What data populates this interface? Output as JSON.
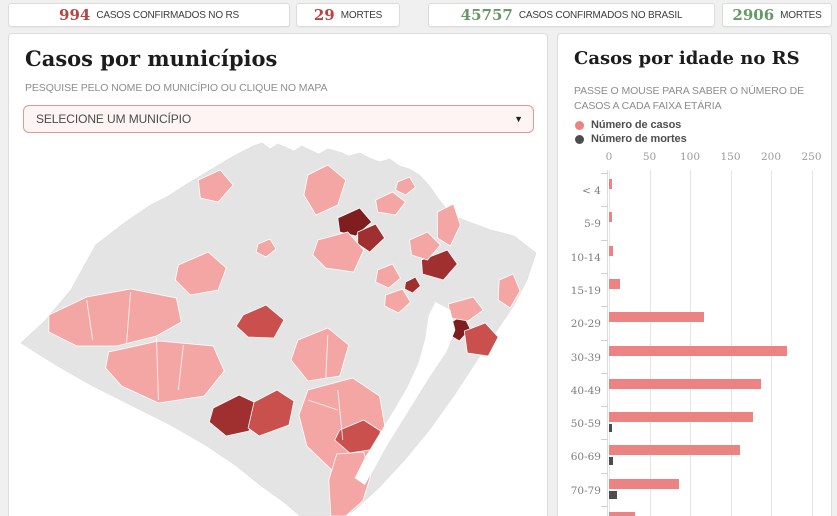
{
  "stats": [
    {
      "value": "994",
      "label": "CASOS CONFIRMADOS NO RS",
      "color": "#bb4341"
    },
    {
      "value": "29",
      "label": "MORTES",
      "color": "#bb4341"
    },
    {
      "value": "45757",
      "label": "CASOS CONFIRMADOS NO BRASIL",
      "color": "#669966"
    },
    {
      "value": "2906",
      "label": "MORTES",
      "color": "#669966"
    }
  ],
  "map_panel": {
    "title": "Casos por municípios",
    "subtitle": "PESQUISE PELO NOME DO MUNICÍPIO OU CLIQUE NO MAPA",
    "select_value": "SELECIONE UM MUNICÍPIO",
    "select_arrow": "▼",
    "map": {
      "base_color": "#e4e4e4",
      "water_color": "#ffffff",
      "border_color": "#ffffff",
      "palette": [
        "#f3a6a4",
        "#c9504c",
        "#a03030",
        "#7e1e1e"
      ],
      "outline": [
        [
          237,
          10
        ],
        [
          245,
          6
        ],
        [
          254,
          3
        ],
        [
          262,
          9
        ],
        [
          270,
          4
        ],
        [
          277,
          7
        ],
        [
          286,
          11
        ],
        [
          294,
          6
        ],
        [
          302,
          10
        ],
        [
          311,
          14
        ],
        [
          320,
          9
        ],
        [
          332,
          12
        ],
        [
          341,
          16
        ],
        [
          352,
          13
        ],
        [
          362,
          18
        ],
        [
          372,
          22
        ],
        [
          382,
          19
        ],
        [
          392,
          26
        ],
        [
          402,
          29
        ],
        [
          412,
          35
        ],
        [
          422,
          46
        ],
        [
          432,
          60
        ],
        [
          444,
          75
        ],
        [
          462,
          82
        ],
        [
          484,
          90
        ],
        [
          507,
          96
        ],
        [
          529,
          113
        ],
        [
          520,
          140
        ],
        [
          507,
          165
        ],
        [
          490,
          190
        ],
        [
          470,
          220
        ],
        [
          447,
          255
        ],
        [
          422,
          290
        ],
        [
          397,
          320
        ],
        [
          372,
          347
        ],
        [
          347,
          370
        ],
        [
          337,
          376
        ],
        [
          292,
          376
        ],
        [
          277,
          363
        ],
        [
          252,
          345
        ],
        [
          227,
          325
        ],
        [
          197,
          305
        ],
        [
          162,
          285
        ],
        [
          122,
          265
        ],
        [
          82,
          245
        ],
        [
          47,
          225
        ],
        [
          12,
          203
        ],
        [
          37,
          180
        ],
        [
          62,
          150
        ],
        [
          87,
          105
        ],
        [
          117,
          82
        ],
        [
          142,
          65
        ],
        [
          160,
          56
        ],
        [
          177,
          45
        ],
        [
          192,
          36
        ],
        [
          207,
          27
        ],
        [
          222,
          18
        ]
      ],
      "lagoon": [
        [
          428,
          162
        ],
        [
          443,
          170
        ],
        [
          448,
          190
        ],
        [
          439,
          212
        ],
        [
          424,
          234
        ],
        [
          409,
          258
        ],
        [
          394,
          282
        ],
        [
          379,
          306
        ],
        [
          367,
          328
        ],
        [
          357,
          345
        ],
        [
          347,
          338
        ],
        [
          357,
          318
        ],
        [
          371,
          295
        ],
        [
          386,
          271
        ],
        [
          400,
          247
        ],
        [
          411,
          223
        ],
        [
          418,
          198
        ],
        [
          421,
          176
        ]
      ],
      "regions": [
        {
          "level": 0,
          "points": [
            [
              190,
              40
            ],
            [
              212,
              30
            ],
            [
              225,
              45
            ],
            [
              210,
              62
            ],
            [
              192,
              58
            ]
          ]
        },
        {
          "level": 0,
          "points": [
            [
              300,
              35
            ],
            [
              320,
              25
            ],
            [
              338,
              40
            ],
            [
              330,
              65
            ],
            [
              308,
              75
            ],
            [
              296,
              55
            ]
          ]
        },
        {
          "level": 3,
          "points": [
            [
              330,
              78
            ],
            [
              352,
              68
            ],
            [
              364,
              82
            ],
            [
              348,
              96
            ],
            [
              332,
              92
            ]
          ]
        },
        {
          "level": 2,
          "points": [
            [
              350,
              92
            ],
            [
              368,
              84
            ],
            [
              377,
              98
            ],
            [
              362,
              112
            ],
            [
              350,
              104
            ]
          ]
        },
        {
          "level": 0,
          "points": [
            [
              310,
              100
            ],
            [
              340,
              92
            ],
            [
              356,
              110
            ],
            [
              346,
              132
            ],
            [
              318,
              128
            ],
            [
              305,
              115
            ]
          ]
        },
        {
          "level": 0,
          "points": [
            [
              368,
              60
            ],
            [
              385,
              52
            ],
            [
              398,
              62
            ],
            [
              388,
              75
            ],
            [
              370,
              72
            ]
          ]
        },
        {
          "level": 0,
          "points": [
            [
              430,
              72
            ],
            [
              446,
              64
            ],
            [
              453,
              85
            ],
            [
              443,
              106
            ],
            [
              430,
              98
            ]
          ]
        },
        {
          "level": 2,
          "points": [
            [
              414,
              120
            ],
            [
              440,
              110
            ],
            [
              450,
              124
            ],
            [
              436,
              140
            ],
            [
              415,
              134
            ]
          ]
        },
        {
          "level": 0,
          "points": [
            [
              170,
              125
            ],
            [
              200,
              112
            ],
            [
              218,
              128
            ],
            [
              210,
              150
            ],
            [
              182,
              155
            ],
            [
              167,
              140
            ]
          ]
        },
        {
          "level": 1,
          "points": [
            [
              235,
              175
            ],
            [
              258,
              165
            ],
            [
              276,
              180
            ],
            [
              266,
              198
            ],
            [
              240,
              197
            ],
            [
              228,
              186
            ]
          ]
        },
        {
          "level": 0,
          "points": [
            [
              40,
              175
            ],
            [
              78,
              157
            ],
            [
              122,
              149
            ],
            [
              168,
              158
            ],
            [
              173,
              182
            ],
            [
              148,
              196
            ],
            [
              108,
              206
            ],
            [
              68,
              206
            ],
            [
              40,
              192
            ]
          ]
        },
        {
          "level": 0,
          "points": [
            [
              100,
              212
            ],
            [
              150,
              201
            ],
            [
              205,
              206
            ],
            [
              216,
              231
            ],
            [
              196,
              256
            ],
            [
              150,
              263
            ],
            [
              113,
              246
            ],
            [
              97,
              228
            ]
          ]
        },
        {
          "level": 0,
          "points": [
            [
              290,
              200
            ],
            [
              320,
              188
            ],
            [
              341,
              205
            ],
            [
              332,
              236
            ],
            [
              300,
              241
            ],
            [
              283,
              220
            ]
          ]
        },
        {
          "level": 0,
          "points": [
            [
              300,
              250
            ],
            [
              345,
              238
            ],
            [
              372,
              256
            ],
            [
              378,
              291
            ],
            [
              355,
              321
            ],
            [
              325,
              331
            ],
            [
              299,
              306
            ],
            [
              291,
              275
            ]
          ]
        },
        {
          "level": 2,
          "points": [
            [
              205,
              268
            ],
            [
              231,
              255
            ],
            [
              246,
              262
            ],
            [
              241,
              291
            ],
            [
              218,
              296
            ],
            [
              201,
              282
            ]
          ]
        },
        {
          "level": 1,
          "points": [
            [
              246,
              262
            ],
            [
              269,
              250
            ],
            [
              286,
              261
            ],
            [
              281,
              285
            ],
            [
              251,
              296
            ],
            [
              240,
              288
            ]
          ]
        },
        {
          "level": 1,
          "points": [
            [
              332,
              290
            ],
            [
              356,
              280
            ],
            [
              373,
              291
            ],
            [
              368,
              309
            ],
            [
              342,
              313
            ],
            [
              327,
              300
            ]
          ]
        },
        {
          "level": 0,
          "points": [
            [
              329,
              314
            ],
            [
              356,
              312
            ],
            [
              363,
              336
            ],
            [
              355,
              361
            ],
            [
              338,
              376
            ],
            [
              323,
              376
            ],
            [
              321,
              340
            ]
          ]
        },
        {
          "level": 3,
          "points": [
            [
              444,
              182
            ],
            [
              456,
              175
            ],
            [
              463,
              189
            ],
            [
              452,
              201
            ],
            [
              442,
              195
            ]
          ]
        },
        {
          "level": 1,
          "points": [
            [
              457,
              191
            ],
            [
              478,
              183
            ],
            [
              491,
              197
            ],
            [
              481,
              216
            ],
            [
              460,
              213
            ]
          ]
        },
        {
          "level": 0,
          "points": [
            [
              441,
              164
            ],
            [
              466,
              157
            ],
            [
              476,
              170
            ],
            [
              461,
              181
            ],
            [
              443,
              178
            ]
          ]
        },
        {
          "level": 0,
          "points": [
            [
              492,
              140
            ],
            [
              506,
              134
            ],
            [
              513,
              151
            ],
            [
              503,
              168
            ],
            [
              491,
              160
            ]
          ]
        },
        {
          "level": 0,
          "points": [
            [
              370,
              130
            ],
            [
              385,
              124
            ],
            [
              393,
              138
            ],
            [
              381,
              148
            ],
            [
              368,
              142
            ]
          ]
        },
        {
          "level": 0,
          "points": [
            [
              378,
              155
            ],
            [
              395,
              149
            ],
            [
              403,
              162
            ],
            [
              391,
              173
            ],
            [
              377,
              166
            ]
          ]
        },
        {
          "level": 0,
          "points": [
            [
              402,
              100
            ],
            [
              420,
              92
            ],
            [
              433,
              105
            ],
            [
              420,
              120
            ],
            [
              404,
              115
            ]
          ]
        },
        {
          "level": 2,
          "points": [
            [
              398,
              142
            ],
            [
              408,
              137
            ],
            [
              413,
              146
            ],
            [
              405,
              153
            ],
            [
              397,
              149
            ]
          ]
        },
        {
          "level": 0,
          "points": [
            [
              390,
              42
            ],
            [
              402,
              37
            ],
            [
              408,
              47
            ],
            [
              398,
              55
            ],
            [
              388,
              50
            ]
          ]
        },
        {
          "level": 0,
          "points": [
            [
              250,
              104
            ],
            [
              262,
              99
            ],
            [
              268,
              109
            ],
            [
              258,
              117
            ],
            [
              248,
              112
            ]
          ]
        }
      ],
      "inner_borders": [
        [
          [
            78,
            160
          ],
          [
            84,
            200
          ]
        ],
        [
          [
            122,
            152
          ],
          [
            118,
            203
          ]
        ],
        [
          [
            148,
            198
          ],
          [
            150,
            260
          ]
        ],
        [
          [
            175,
            205
          ],
          [
            170,
            250
          ]
        ],
        [
          [
            320,
            195
          ],
          [
            318,
            238
          ]
        ],
        [
          [
            330,
            250
          ],
          [
            335,
            300
          ]
        ],
        [
          [
            300,
            260
          ],
          [
            330,
            270
          ]
        ]
      ]
    }
  },
  "chart_panel": {
    "title": "Casos por idade no RS",
    "subtitle": "PASSE O MOUSE PARA SABER O NÚMERO DE CASOS A CADA FAIXA ETÁRIA",
    "legend": [
      {
        "label": "Número de casos",
        "color": "#ec8282"
      },
      {
        "label": "Número de mortes",
        "color": "#4d4d4d"
      }
    ]
  },
  "chart_data": {
    "type": "bar",
    "orientation": "horizontal",
    "title": "Casos por idade no RS",
    "categories": [
      "< 4",
      "5-9",
      "10-14",
      "15-19",
      "20-29",
      "30-39",
      "40-49",
      "50-59",
      "60-69",
      "70-79",
      ""
    ],
    "series": [
      {
        "name": "Número de casos",
        "color": "#ec8282",
        "values": [
          4,
          4,
          5,
          14,
          117,
          220,
          188,
          178,
          162,
          87,
          32
        ]
      },
      {
        "name": "Número de mortes",
        "color": "#4d4d4d",
        "values": [
          0,
          0,
          0,
          0,
          0,
          0,
          0,
          2,
          5,
          10,
          0
        ]
      }
    ],
    "x_ticks": [
      0,
      50,
      100,
      150,
      200,
      250
    ],
    "xlim": [
      0,
      260
    ],
    "grid": true,
    "legend_position": "top-left"
  }
}
